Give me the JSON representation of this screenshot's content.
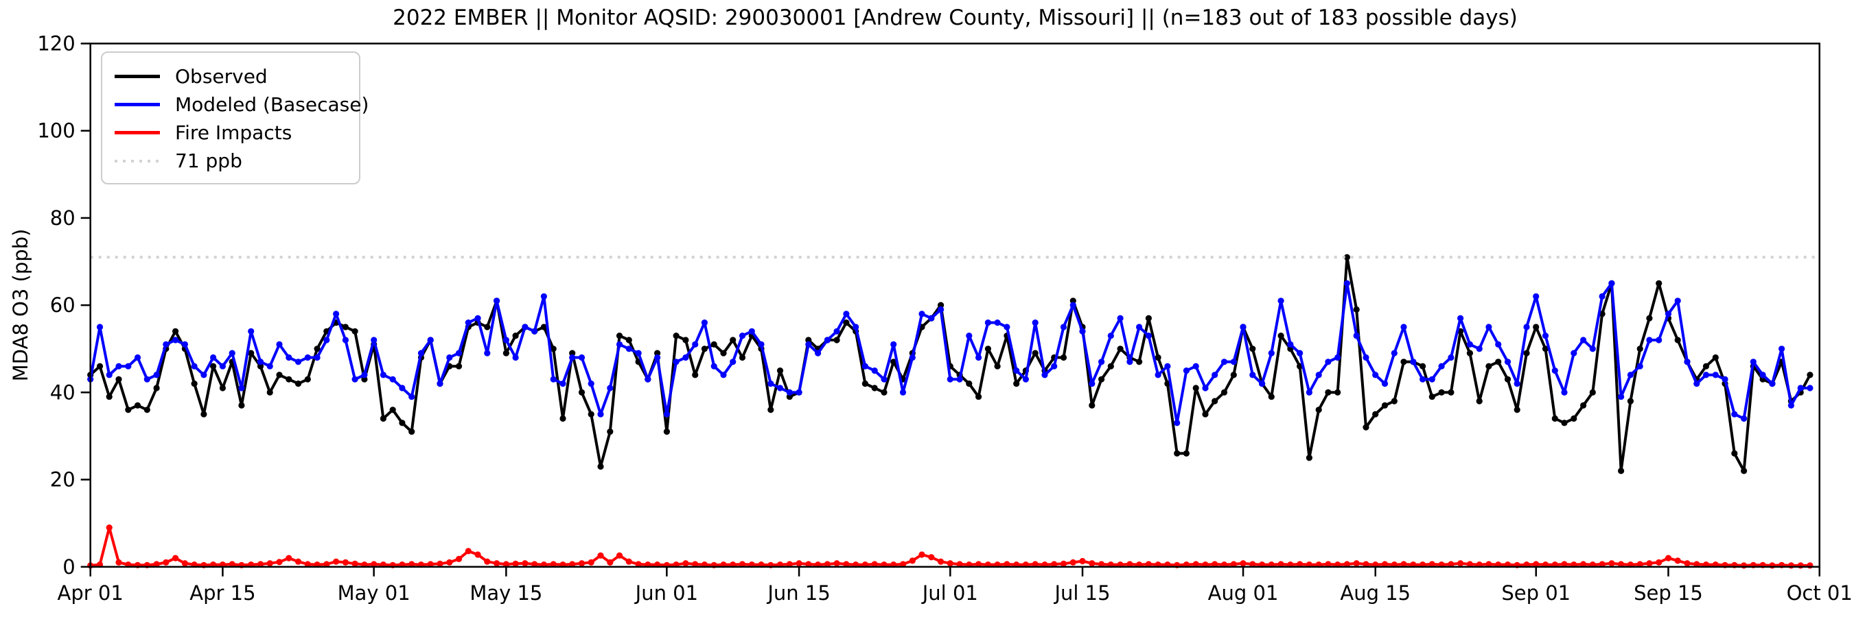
{
  "chart_data": {
    "type": "line",
    "title": "2022 EMBER || Monitor AQSID: 290030001 [Andrew County, Missouri] || (n=183 out of 183 possible days)",
    "ylabel": "MDA8 O3 (ppb)",
    "xlabel": "",
    "ylim": [
      0,
      120
    ],
    "y_ticks": [
      0,
      20,
      40,
      60,
      80,
      100,
      120
    ],
    "x_range_days": 183,
    "x_ticks": [
      {
        "label": "Apr 01",
        "day": 0
      },
      {
        "label": "Apr 15",
        "day": 14
      },
      {
        "label": "May 01",
        "day": 30
      },
      {
        "label": "May 15",
        "day": 44
      },
      {
        "label": "Jun 01",
        "day": 61
      },
      {
        "label": "Jun 15",
        "day": 75
      },
      {
        "label": "Jul 01",
        "day": 91
      },
      {
        "label": "Jul 15",
        "day": 105
      },
      {
        "label": "Aug 01",
        "day": 122
      },
      {
        "label": "Aug 15",
        "day": 136
      },
      {
        "label": "Sep 01",
        "day": 153
      },
      {
        "label": "Sep 15",
        "day": 167
      },
      {
        "label": "Oct 01",
        "day": 183
      }
    ],
    "threshold": {
      "value": 71,
      "label": "71 ppb",
      "color": "#d3d3d3"
    },
    "legend": {
      "position": "upper left",
      "items": [
        {
          "label": "Observed",
          "color": "#000000",
          "style": "solid"
        },
        {
          "label": "Modeled (Basecase)",
          "color": "#0000ff",
          "style": "solid"
        },
        {
          "label": "Fire Impacts",
          "color": "#ff0000",
          "style": "solid"
        },
        {
          "label": "71 ppb",
          "color": "#d3d3d3",
          "style": "dotted"
        }
      ]
    },
    "series": [
      {
        "name": "Observed",
        "color": "#000000",
        "values": [
          44,
          46,
          39,
          43,
          36,
          37,
          36,
          41,
          50,
          54,
          50,
          42,
          35,
          46,
          41,
          47,
          37,
          49,
          46,
          40,
          44,
          43,
          42,
          43,
          50,
          54,
          56,
          55,
          54,
          43,
          51,
          34,
          36,
          33,
          31,
          48,
          52,
          42,
          46,
          46,
          55,
          56,
          55,
          61,
          49,
          53,
          55,
          54,
          55,
          50,
          34,
          49,
          40,
          35,
          23,
          31,
          53,
          52,
          47,
          43,
          49,
          31,
          53,
          52,
          44,
          50,
          51,
          49,
          52,
          48,
          53,
          50,
          36,
          45,
          39,
          40,
          52,
          50,
          52,
          52,
          56,
          54,
          42,
          41,
          40,
          47,
          43,
          49,
          55,
          57,
          60,
          46,
          44,
          42,
          39,
          50,
          46,
          53,
          42,
          45,
          49,
          45,
          48,
          48,
          61,
          55,
          37,
          43,
          46,
          50,
          48,
          47,
          57,
          48,
          42,
          26,
          26,
          41,
          35,
          38,
          40,
          44,
          55,
          50,
          42,
          39,
          53,
          50,
          46,
          25,
          36,
          40,
          40,
          71,
          59,
          32,
          35,
          37,
          38,
          47,
          47,
          46,
          39,
          40,
          40,
          54,
          49,
          38,
          46,
          47,
          43,
          36,
          49,
          55,
          50,
          34,
          33,
          34,
          37,
          40,
          58,
          65,
          22,
          38,
          50,
          57,
          65,
          57,
          52,
          47,
          43,
          46,
          48,
          42,
          26,
          22,
          46,
          43,
          42,
          47,
          38,
          40,
          44
        ]
      },
      {
        "name": "Modeled (Basecase)",
        "color": "#0000ff",
        "values": [
          43,
          55,
          44,
          46,
          46,
          48,
          43,
          44,
          51,
          52,
          51,
          46,
          44,
          48,
          46,
          49,
          41,
          54,
          47,
          46,
          51,
          48,
          47,
          48,
          48,
          52,
          58,
          52,
          43,
          44,
          52,
          44,
          43,
          41,
          39,
          49,
          52,
          42,
          48,
          49,
          56,
          57,
          49,
          61,
          52,
          48,
          55,
          54,
          62,
          43,
          42,
          48,
          48,
          42,
          35,
          41,
          51,
          50,
          49,
          43,
          48,
          35,
          47,
          48,
          51,
          56,
          46,
          44,
          47,
          53,
          54,
          51,
          42,
          41,
          40,
          40,
          51,
          49,
          52,
          54,
          58,
          55,
          46,
          45,
          43,
          51,
          40,
          48,
          58,
          57,
          59,
          43,
          43,
          53,
          48,
          56,
          56,
          55,
          45,
          43,
          56,
          44,
          46,
          55,
          60,
          54,
          42,
          47,
          53,
          57,
          47,
          55,
          53,
          44,
          46,
          33,
          45,
          46,
          41,
          44,
          47,
          47,
          55,
          44,
          42,
          49,
          61,
          51,
          49,
          40,
          44,
          47,
          48,
          65,
          53,
          48,
          44,
          42,
          49,
          55,
          47,
          43,
          43,
          46,
          48,
          57,
          51,
          50,
          55,
          51,
          47,
          42,
          55,
          62,
          53,
          45,
          40,
          49,
          52,
          50,
          62,
          65,
          39,
          44,
          46,
          52,
          52,
          58,
          61,
          47,
          42,
          44,
          44,
          43,
          35,
          34,
          47,
          44,
          42,
          50,
          37,
          41,
          41
        ]
      },
      {
        "name": "Fire Impacts",
        "color": "#ff0000",
        "values": [
          0.3,
          0.5,
          9,
          1,
          0.5,
          0.4,
          0.4,
          0.6,
          1,
          2,
          0.8,
          0.5,
          0.4,
          0.5,
          0.5,
          0.6,
          0.4,
          0.5,
          0.6,
          0.8,
          1.1,
          2,
          1.2,
          0.6,
          0.5,
          0.6,
          1.2,
          1,
          0.7,
          0.5,
          0.6,
          0.5,
          0.4,
          0.5,
          0.6,
          0.5,
          0.6,
          0.7,
          1,
          1.8,
          3.6,
          2.8,
          1.2,
          0.8,
          0.6,
          0.7,
          0.8,
          0.6,
          0.5,
          0.6,
          0.5,
          0.6,
          0.8,
          1,
          2.6,
          1,
          2.6,
          1.2,
          0.6,
          0.5,
          0.5,
          0.4,
          0.5,
          0.8,
          0.6,
          0.5,
          0.4,
          0.5,
          0.5,
          0.6,
          0.5,
          0.5,
          0.4,
          0.5,
          0.6,
          0.8,
          0.6,
          0.5,
          0.6,
          0.8,
          0.6,
          0.5,
          0.5,
          0.6,
          0.5,
          0.5,
          0.6,
          1.4,
          2.8,
          2.2,
          1.2,
          0.8,
          0.6,
          0.5,
          0.6,
          0.5,
          0.5,
          0.6,
          0.5,
          0.5,
          0.6,
          0.5,
          0.6,
          0.7,
          1,
          1.3,
          0.8,
          0.6,
          0.5,
          0.5,
          0.6,
          0.5,
          0.6,
          0.5,
          0.5,
          0.4,
          0.5,
          0.6,
          0.5,
          0.6,
          0.5,
          0.6,
          0.8,
          0.6,
          0.5,
          0.5,
          0.6,
          0.5,
          0.6,
          0.5,
          0.5,
          0.6,
          0.5,
          0.6,
          0.8,
          0.6,
          0.5,
          0.6,
          0.5,
          0.6,
          0.5,
          0.5,
          0.6,
          0.5,
          0.6,
          0.8,
          0.6,
          0.5,
          0.6,
          0.5,
          0.5,
          0.4,
          0.5,
          0.6,
          0.5,
          0.5,
          0.6,
          0.5,
          0.6,
          0.5,
          0.6,
          0.8,
          0.6,
          0.5,
          0.6,
          0.8,
          1,
          2,
          1.4,
          0.8,
          0.6,
          0.5,
          0.5,
          0.4,
          0.4,
          0.3,
          0.4,
          0.4,
          0.3,
          0.4,
          0.3,
          0.3,
          0.3
        ]
      }
    ],
    "grid": false,
    "marker": "circle"
  }
}
